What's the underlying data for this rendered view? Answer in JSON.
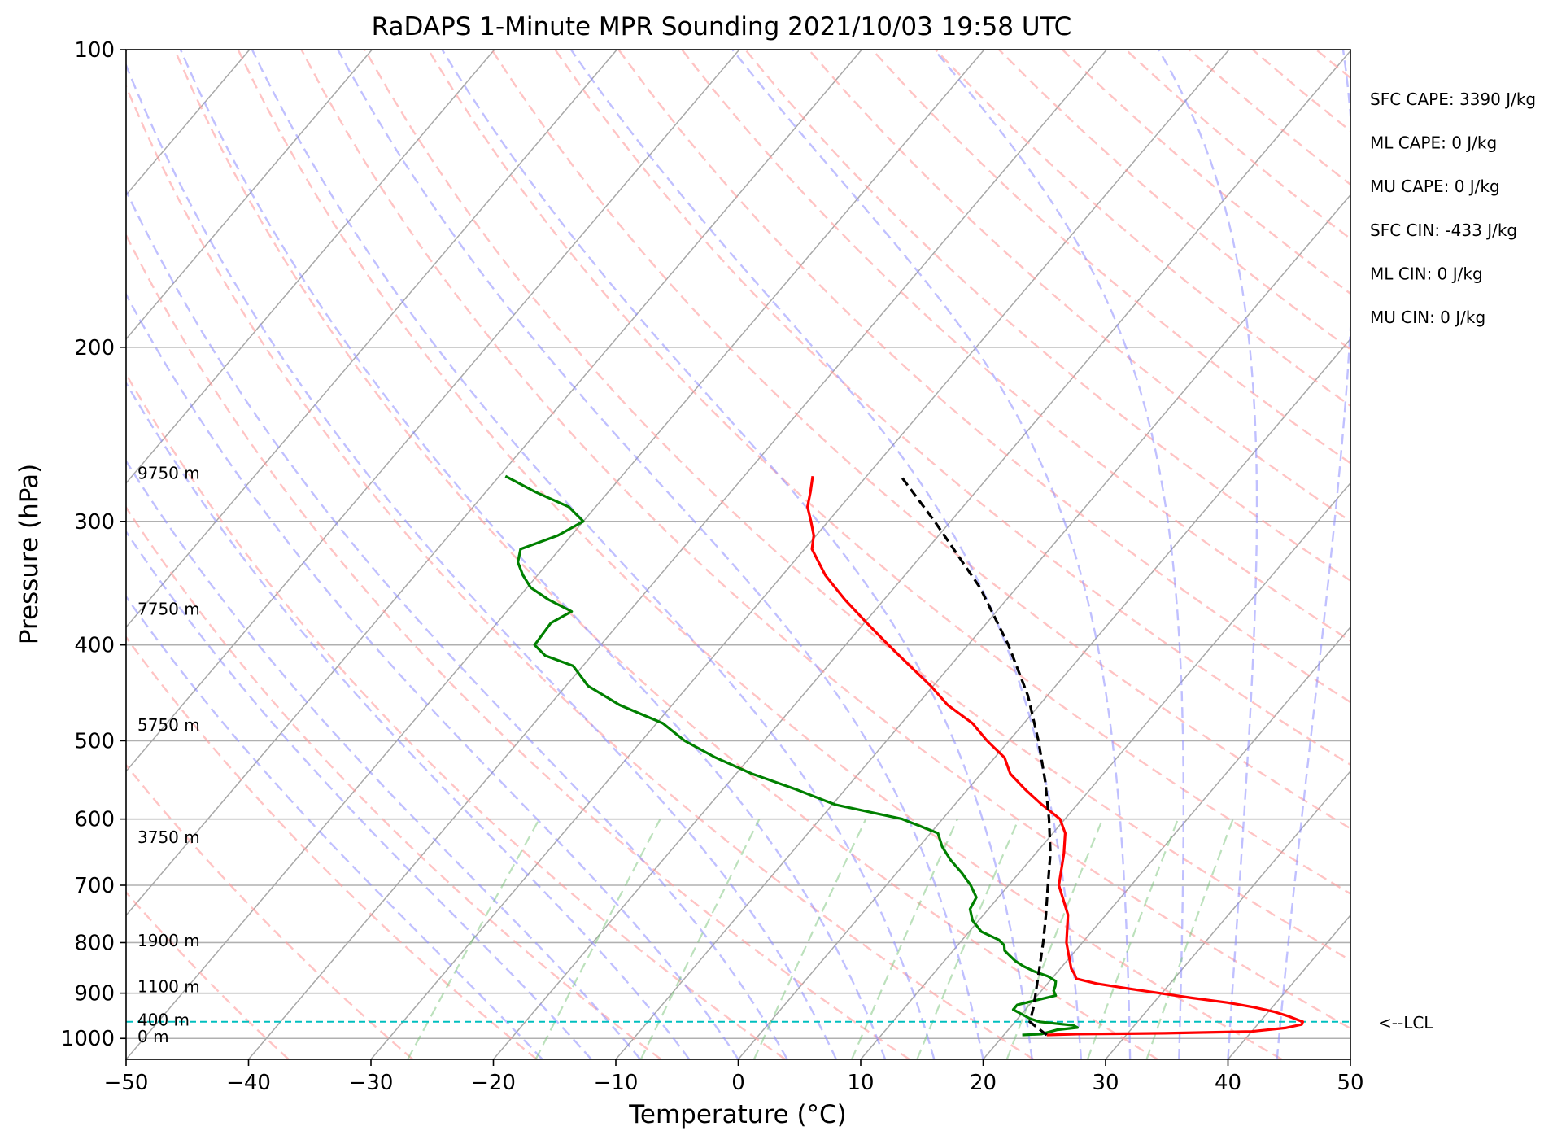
{
  "chart_data": {
    "type": "skew-t",
    "title": "RaDAPS 1-Minute MPR Sounding 2021/10/03 19:58 UTC",
    "xlabel": "Temperature (°C)",
    "ylabel": "Pressure (hPa)",
    "xlim": [
      -50,
      50
    ],
    "ylim": [
      1050,
      100
    ],
    "x_ticks": [
      "−50",
      "−40",
      "−30",
      "−20",
      "−10",
      "0",
      "10",
      "20",
      "30",
      "40",
      "50"
    ],
    "y_ticks": [
      {
        "p": 100,
        "label": "100"
      },
      {
        "p": 200,
        "label": "200"
      },
      {
        "p": 300,
        "label": "300"
      },
      {
        "p": 400,
        "label": "400"
      },
      {
        "p": 500,
        "label": "500"
      },
      {
        "p": 600,
        "label": "600"
      },
      {
        "p": 700,
        "label": "700"
      },
      {
        "p": 800,
        "label": "800"
      },
      {
        "p": 900,
        "label": "900"
      },
      {
        "p": 1000,
        "label": "1000"
      }
    ],
    "height_labels": [
      {
        "p": 268,
        "label": "9750 m"
      },
      {
        "p": 368,
        "label": "7750 m"
      },
      {
        "p": 482,
        "label": "5750 m"
      },
      {
        "p": 626,
        "label": "3750 m"
      },
      {
        "p": 796,
        "label": "1900 m"
      },
      {
        "p": 886,
        "label": "1100 m"
      },
      {
        "p": 958,
        "label": "400 m"
      },
      {
        "p": 996,
        "label": "0 m"
      }
    ],
    "stats": [
      "SFC CAPE: 3390 J/kg",
      "ML CAPE: 0 J/kg",
      "MU CAPE: 0 J/kg",
      "SFC CIN: -433 J/kg",
      "ML CIN: 0 J/kg",
      "MU CIN: 0 J/kg"
    ],
    "lcl": {
      "p": 962,
      "label": "<--LCL"
    },
    "temperature": {
      "color": "#ff0000",
      "p": [
        992,
        990,
        988,
        984,
        976,
        968,
        962,
        958,
        950,
        940,
        930,
        920,
        910,
        900,
        890,
        880,
        875,
        870,
        860,
        850,
        800,
        750,
        700,
        650,
        620,
        600,
        580,
        560,
        540,
        520,
        500,
        480,
        460,
        440,
        420,
        400,
        380,
        360,
        340,
        320,
        310,
        300,
        290,
        280,
        270
      ],
      "t": [
        23.5,
        26.0,
        33.0,
        40.0,
        42.5,
        43.6,
        43.5,
        43.0,
        42.0,
        40.5,
        38.5,
        36.0,
        32.8,
        29.8,
        26.8,
        24.0,
        23.0,
        22.0,
        21.5,
        20.9,
        18.7,
        16.9,
        14.1,
        12.3,
        11.0,
        9.6,
        7.1,
        4.7,
        2.4,
        0.8,
        -1.8,
        -4.2,
        -7.5,
        -10.2,
        -13.3,
        -16.5,
        -19.8,
        -23.2,
        -26.5,
        -29.4,
        -30.2,
        -31.4,
        -32.7,
        -33.5,
        -34.4
      ]
    },
    "dewpoint": {
      "color": "#008000",
      "p": [
        992,
        990,
        980,
        975,
        970,
        962,
        955,
        945,
        935,
        925,
        915,
        905,
        895,
        885,
        875,
        865,
        855,
        845,
        835,
        825,
        815,
        805,
        795,
        780,
        760,
        740,
        720,
        700,
        680,
        660,
        640,
        620,
        600,
        580,
        560,
        540,
        520,
        500,
        480,
        460,
        440,
        420,
        410,
        400,
        380,
        370,
        360,
        350,
        340,
        330,
        320,
        310,
        300,
        290,
        280,
        270
      ],
      "t": [
        21.5,
        23.0,
        24.0,
        25.5,
        25.0,
        22.0,
        21.0,
        20.0,
        19.0,
        19.0,
        20.2,
        21.5,
        21.0,
        20.8,
        20.5,
        19.5,
        18.0,
        16.8,
        15.8,
        15.0,
        14.2,
        13.8,
        13.0,
        11.0,
        9.5,
        8.5,
        8.2,
        6.9,
        5.3,
        3.5,
        1.9,
        0.6,
        -3.3,
        -9.8,
        -14.0,
        -18.7,
        -22.8,
        -26.5,
        -29.5,
        -34.3,
        -38.2,
        -40.8,
        -43.8,
        -45.4,
        -45.6,
        -44.7,
        -47.4,
        -49.7,
        -51.2,
        -52.5,
        -53.2,
        -51.1,
        -50.0,
        -52.2,
        -56.0,
        -59.5
      ]
    },
    "parcel": {
      "color": "#000000",
      "style": "dashed",
      "p": [
        992,
        962,
        930,
        900,
        850,
        800,
        750,
        700,
        650,
        600,
        550,
        500,
        450,
        400,
        350,
        300,
        270
      ],
      "t": [
        23.5,
        21.2,
        20.5,
        19.7,
        18.3,
        16.8,
        15.1,
        13.2,
        11.2,
        8.7,
        5.8,
        2.4,
        -1.6,
        -6.7,
        -13.0,
        -21.3,
        -27.2
      ]
    },
    "reference_lines": {
      "isotherms": "gray solid",
      "dry_adiabats": "red dashed",
      "moist_adiabats": "blue dashed",
      "mixing_ratio": "green dashed",
      "isobars": "gray solid"
    }
  }
}
